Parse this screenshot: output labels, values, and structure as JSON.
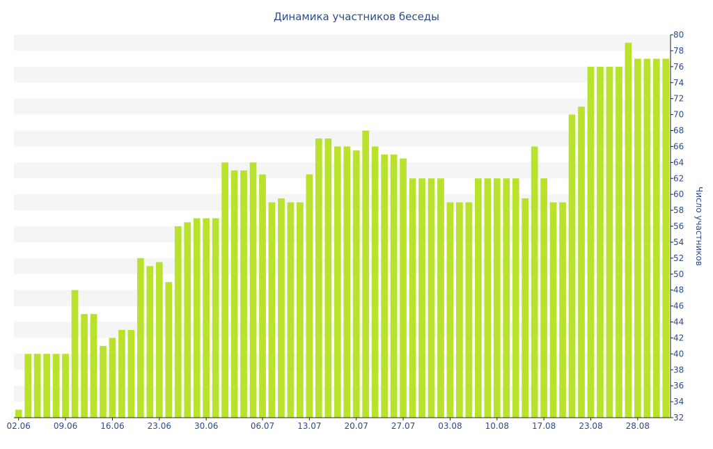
{
  "chart_data": {
    "type": "bar",
    "title": "Динамика участников беседы",
    "xlabel": "",
    "ylabel": "Число участников",
    "ylim": [
      32,
      80
    ],
    "y_ticks": [
      32,
      34,
      36,
      38,
      40,
      42,
      44,
      46,
      48,
      50,
      52,
      54,
      56,
      58,
      60,
      62,
      64,
      66,
      68,
      70,
      72,
      74,
      76,
      78,
      80
    ],
    "y_axis_position": "right",
    "x_tick_labels": [
      "02.06",
      "09.06",
      "16.06",
      "23.06",
      "30.06",
      "06.07",
      "13.07",
      "20.07",
      "27.07",
      "03.08",
      "10.08",
      "17.08",
      "23.08",
      "28.08"
    ],
    "x_tick_label_indices": [
      0,
      5,
      10,
      15,
      20,
      26,
      31,
      36,
      41,
      46,
      51,
      56,
      61,
      66
    ],
    "values": [
      33,
      40,
      40,
      40,
      40,
      40,
      48,
      45,
      45,
      41,
      42,
      43,
      43,
      52,
      51,
      51.5,
      49,
      56,
      56.5,
      57,
      57,
      57,
      64,
      63,
      63,
      64,
      62.5,
      59,
      59.5,
      59,
      59,
      62.5,
      67,
      67,
      66,
      66,
      65.5,
      68,
      66,
      65,
      65,
      64.5,
      62,
      62,
      62,
      62,
      59,
      59,
      59,
      62,
      62,
      62,
      62,
      62,
      59.5,
      66,
      62,
      59,
      59,
      70,
      71,
      76,
      76,
      76,
      76,
      79,
      77,
      77,
      77,
      77
    ],
    "bar_color": "#b9e22c",
    "grid": "alternating horizontal bands",
    "band_color": "#f5f5f5",
    "text_color": "#2f4a8a",
    "axis_color": "#222222"
  }
}
